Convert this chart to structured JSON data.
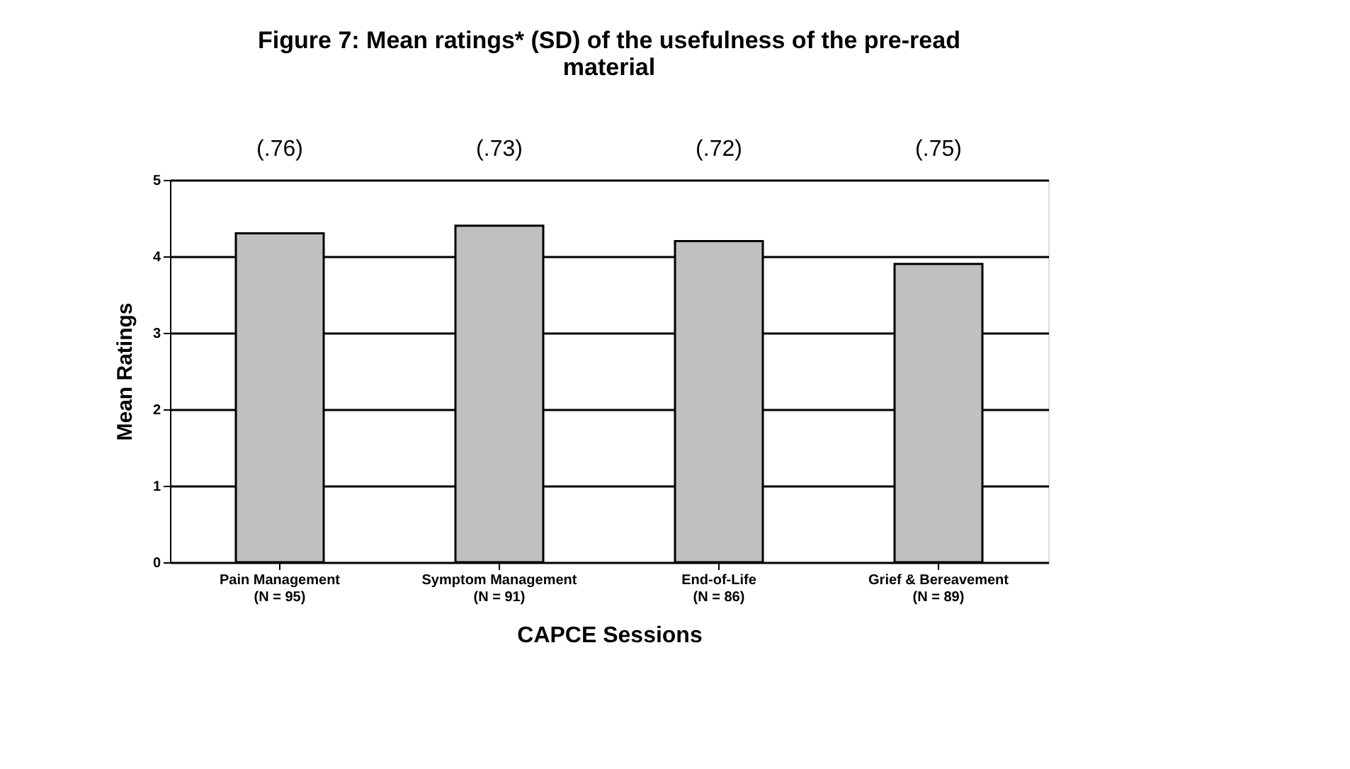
{
  "chart_data": {
    "type": "bar",
    "title": "Figure 7: Mean ratings* (SD) of the usefulness of the pre-read material",
    "xlabel": "CAPCE Sessions",
    "ylabel": "Mean Ratings",
    "categories": [
      "Pain Management\n(N = 95)",
      "Symptom Management\n(N = 91)",
      "End-of-Life\n(N = 86)",
      "Grief & Bereavement\n(N = 89)"
    ],
    "values": [
      4.3,
      4.4,
      4.2,
      3.9
    ],
    "color": "#c0c0c0",
    "ylim": [
      0,
      5
    ],
    "yticks": [
      0,
      1,
      2,
      3,
      4,
      5
    ],
    "grid": "y",
    "annotations": [
      "(.76)",
      "(.73)",
      "(.72)",
      "(.75)"
    ]
  }
}
